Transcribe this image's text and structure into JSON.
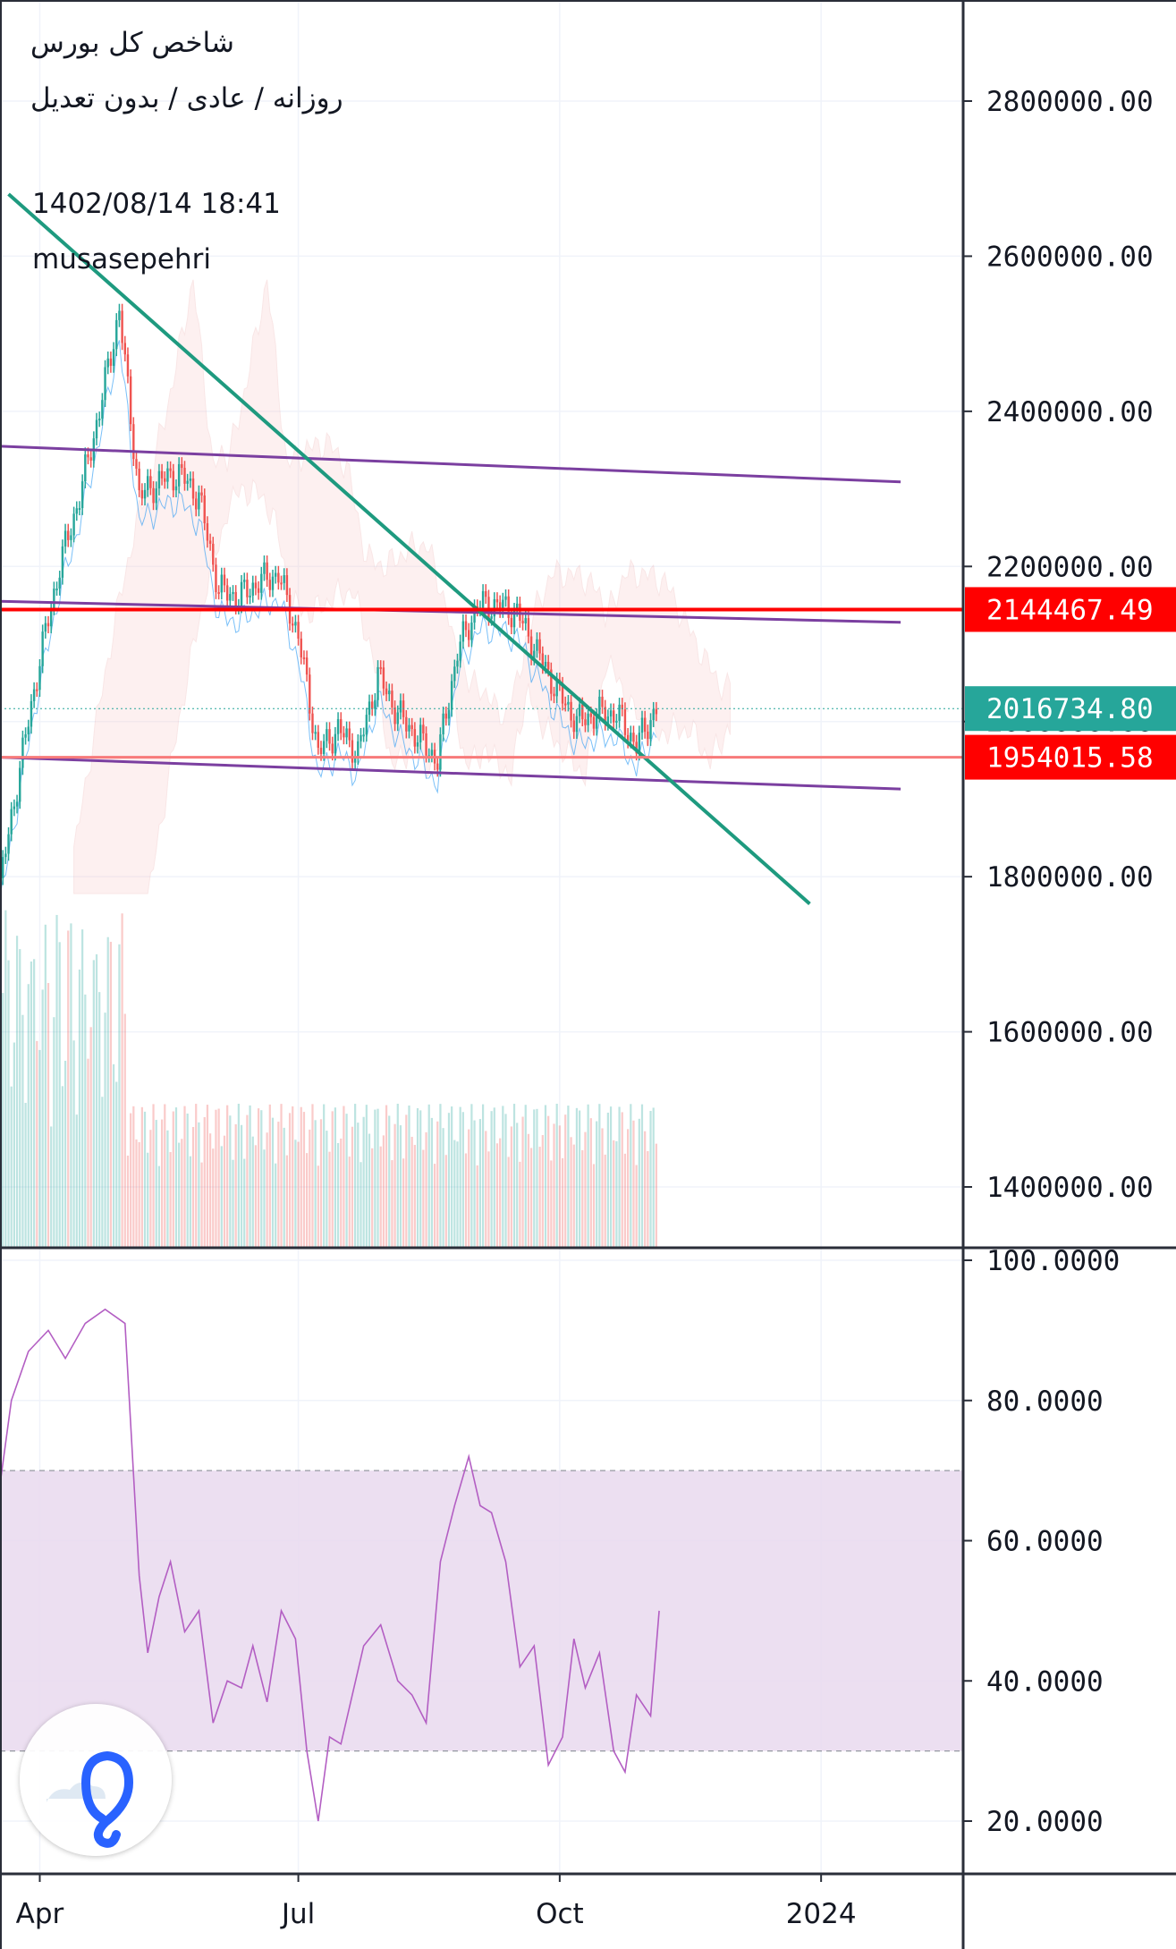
{
  "header": {
    "symbol_name": "شاخص کل بورس",
    "chart_settings": "روزانه / عادی / بدون تعدیل",
    "timestamp": "1402/08/14 18:41",
    "author": "musasepehri"
  },
  "colors": {
    "up": "#26a69a",
    "down": "#ef5350",
    "trendline": "#1e9a7f",
    "channel": "#7b3fa0",
    "resistance": "#ff0000",
    "support": "#f77a7a",
    "rsi_line": "#b35ec3",
    "rsi_band": "#e9d9ef",
    "axis_text": "#131722",
    "price_badge": "#26a69a",
    "level_badge": "#ff0000"
  },
  "logo": {
    "icon": "tradingview-cloud-logo-icon"
  },
  "chart_data": [
    {
      "type": "candlestick",
      "title": "شاخص کل بورس",
      "y_axis_ticks": [
        "1400000.00",
        "1600000.00",
        "1800000.00",
        "2000000.00",
        "2200000.00",
        "2400000.00",
        "2600000.00",
        "2800000.00"
      ],
      "ylim": [
        1320000,
        2920000
      ],
      "x_axis_ticks": [
        "Apr",
        "Jul",
        "Oct",
        "2024"
      ],
      "x_tick_dates": [
        "2023-04-01",
        "2023-07-01",
        "2023-10-01",
        "2024-01-01"
      ],
      "x_range": [
        "2023-03-18",
        "2024-02-20"
      ],
      "grid": true,
      "last_price_label": "2016734.80",
      "horizontal_levels": [
        {
          "label": "2144467.49",
          "value": 2144467.49,
          "color": "#ff0000"
        },
        {
          "label": "1954015.58",
          "value": 1954015.58,
          "color": "#f77a7a"
        }
      ],
      "trendline": {
        "from": {
          "date": "2023-03-21",
          "value": 2680000
        },
        "to": {
          "date": "2023-12-28",
          "value": 1765000
        }
      },
      "channel_lines": [
        {
          "from": {
            "date": "2023-03-18",
            "value": 2355000
          },
          "to": {
            "date": "2024-01-29",
            "value": 2309000
          }
        },
        {
          "from": {
            "date": "2023-03-18",
            "value": 2155000
          },
          "to": {
            "date": "2024-01-29",
            "value": 2128000
          }
        },
        {
          "from": {
            "date": "2023-03-18",
            "value": 1954000
          },
          "to": {
            "date": "2024-01-29",
            "value": 1913000
          }
        }
      ],
      "close_series_sampled": {
        "dates": [
          "2023-03-18",
          "2023-03-25",
          "2023-04-01",
          "2023-04-08",
          "2023-04-15",
          "2023-04-22",
          "2023-04-29",
          "2023-05-06",
          "2023-05-13",
          "2023-05-20",
          "2023-05-27",
          "2023-06-03",
          "2023-06-10",
          "2023-06-17",
          "2023-06-24",
          "2023-07-01",
          "2023-07-08",
          "2023-07-15",
          "2023-07-22",
          "2023-07-29",
          "2023-08-05",
          "2023-08-12",
          "2023-08-19",
          "2023-08-26",
          "2023-09-02",
          "2023-09-09",
          "2023-09-16",
          "2023-09-23",
          "2023-09-30",
          "2023-10-07",
          "2023-10-14",
          "2023-10-21",
          "2023-10-28",
          "2023-11-04"
        ],
        "values": [
          1790000,
          1940000,
          2080000,
          2200000,
          2290000,
          2400000,
          2530000,
          2290000,
          2310000,
          2320000,
          2290000,
          2170000,
          2160000,
          2180000,
          2190000,
          2110000,
          1960000,
          1990000,
          1960000,
          2060000,
          2010000,
          1980000,
          1950000,
          2090000,
          2150000,
          2150000,
          2140000,
          2090000,
          2040000,
          2000000,
          2010000,
          2010000,
          1970000,
          2016734.8
        ]
      },
      "volume_note": "volume histogram shown at bottom of price pane"
    },
    {
      "type": "line",
      "title": "RSI",
      "y_axis_ticks": [
        "20.0000",
        "40.0000",
        "60.0000",
        "80.0000",
        "100.0000"
      ],
      "ylim": [
        12,
        100
      ],
      "band": [
        30,
        70
      ],
      "dates": [
        "2023-03-18",
        "2023-03-22",
        "2023-03-28",
        "2023-04-04",
        "2023-04-10",
        "2023-04-17",
        "2023-04-24",
        "2023-05-01",
        "2023-05-06",
        "2023-05-09",
        "2023-05-13",
        "2023-05-17",
        "2023-05-22",
        "2023-05-27",
        "2023-06-01",
        "2023-06-06",
        "2023-06-11",
        "2023-06-15",
        "2023-06-20",
        "2023-06-25",
        "2023-06-30",
        "2023-07-04",
        "2023-07-08",
        "2023-07-12",
        "2023-07-16",
        "2023-07-20",
        "2023-07-24",
        "2023-07-30",
        "2023-08-05",
        "2023-08-10",
        "2023-08-15",
        "2023-08-20",
        "2023-08-25",
        "2023-08-30",
        "2023-09-03",
        "2023-09-07",
        "2023-09-12",
        "2023-09-17",
        "2023-09-22",
        "2023-09-27",
        "2023-10-02",
        "2023-10-06",
        "2023-10-10",
        "2023-10-15",
        "2023-10-20",
        "2023-10-24",
        "2023-10-28",
        "2023-11-02",
        "2023-11-05"
      ],
      "values": [
        68,
        80,
        87,
        90,
        86,
        91,
        93,
        91,
        55,
        44,
        52,
        57,
        47,
        50,
        34,
        40,
        39,
        45,
        37,
        50,
        46,
        30,
        20,
        32,
        31,
        38,
        45,
        48,
        40,
        38,
        34,
        57,
        65,
        72,
        65,
        64,
        57,
        42,
        45,
        28,
        32,
        46,
        39,
        44,
        30,
        27,
        38,
        35,
        50
      ]
    }
  ]
}
